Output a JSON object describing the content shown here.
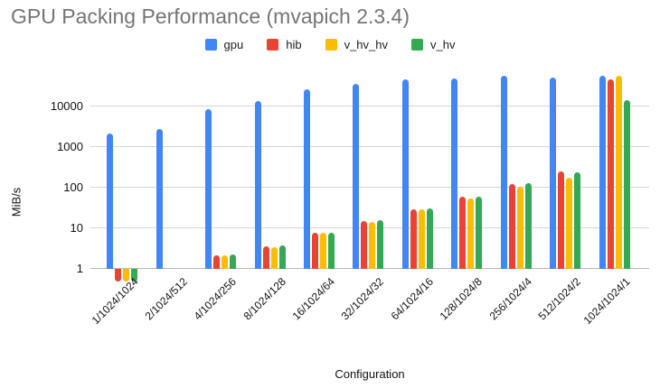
{
  "chart_data": {
    "type": "bar",
    "title": "GPU Packing Performance (mvapich 2.3.4)",
    "xlabel": "Configuration",
    "ylabel": "MiB/s",
    "y_scale": "log",
    "y_ticks": [
      1,
      10,
      100,
      1000,
      10000
    ],
    "grid": true,
    "legend_position": "top",
    "categories": [
      "1/1024/1024",
      "2/1024/512",
      "4/1024/256",
      "8/1024/128",
      "16/1024/64",
      "32/1024/32",
      "64/1024/16",
      "128/1024/8",
      "256/1024/4",
      "512/1024/2",
      "1024/1024/1"
    ],
    "series": [
      {
        "name": "gpu",
        "color": "#4285F4",
        "values": [
          2200,
          2800,
          8800,
          13500,
          26000,
          36000,
          47000,
          50000,
          56000,
          51000,
          57500
        ]
      },
      {
        "name": "hib",
        "color": "#EA4335",
        "values": [
          0.5,
          1,
          2.2,
          3.6,
          7.7,
          15,
          30,
          61,
          125,
          250,
          46500
        ]
      },
      {
        "name": "v_hv_hv",
        "color": "#FBBC04",
        "values": [
          0.5,
          1,
          2.2,
          3.5,
          7.6,
          14,
          29,
          55,
          107,
          175,
          56500
        ]
      },
      {
        "name": "v_hv",
        "color": "#34A853",
        "values": [
          0.5,
          1,
          2.3,
          3.7,
          7.8,
          16,
          31,
          61,
          130,
          235,
          14300
        ]
      }
    ]
  },
  "styles": {
    "title_color": "#757575",
    "grid_color": "#d4d4d4",
    "baseline_color": "#b5b5b5",
    "axis_text_color": "#111111",
    "legend_text_color": "#212121"
  }
}
